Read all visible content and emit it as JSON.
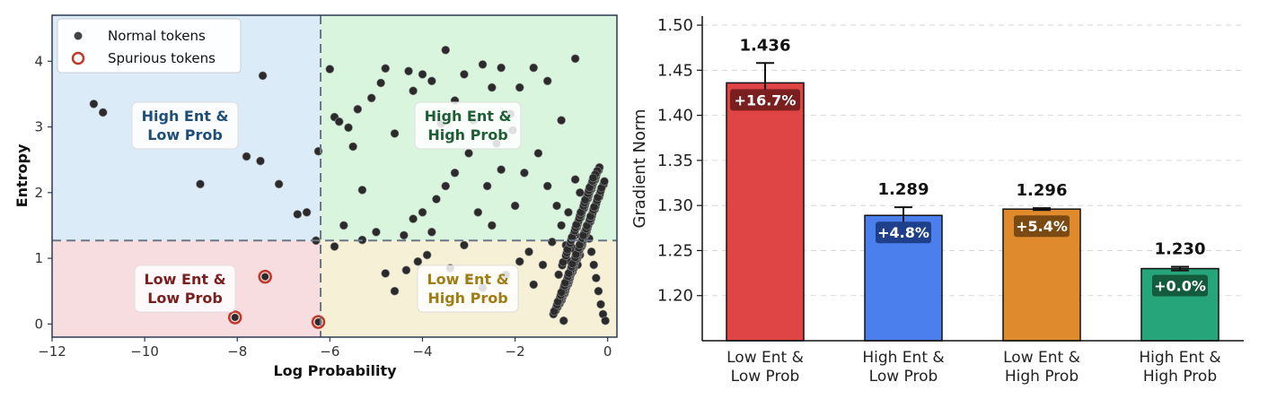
{
  "chart_data": [
    {
      "type": "scatter",
      "title": "",
      "xlabel": "Log Probability",
      "ylabel": "Entropy",
      "xlim": [
        -12,
        0.2
      ],
      "ylim": [
        -0.2,
        4.7
      ],
      "xticks": [
        -12,
        -10,
        -8,
        -6,
        -4,
        -2,
        0
      ],
      "xtick_labels": [
        "−12",
        "−10",
        "−8",
        "−6",
        "−4",
        "−2",
        "0"
      ],
      "yticks": [
        0,
        1,
        2,
        3,
        4
      ],
      "ytick_labels": [
        "0",
        "1",
        "2",
        "3",
        "4"
      ],
      "thresholds": {
        "x": -6.2,
        "y": 1.27
      },
      "legend": {
        "position": "top-left",
        "entries": [
          "Normal tokens",
          "Spurious tokens"
        ]
      },
      "regions": [
        {
          "label_line1": "High Ent &",
          "label_line2": "Low Prob",
          "color": "#1f4e79",
          "fill": "#dcebf8"
        },
        {
          "label_line1": "High Ent &",
          "label_line2": "High Prob",
          "color": "#1e5e36",
          "fill": "#daf5de"
        },
        {
          "label_line1": "Low Ent &",
          "label_line2": "Low Prob",
          "color": "#7a1f1f",
          "fill": "#f8dde0"
        },
        {
          "label_line1": "Low Ent &",
          "label_line2": "High Prob",
          "color": "#a07d12",
          "fill": "#f6f0d6"
        }
      ],
      "series": [
        {
          "name": "Normal tokens",
          "points": [
            [
              -11.1,
              3.35
            ],
            [
              -10.9,
              3.22
            ],
            [
              -8.8,
              2.13
            ],
            [
              -7.8,
              2.55
            ],
            [
              -7.5,
              2.48
            ],
            [
              -7.1,
              2.13
            ],
            [
              -6.7,
              1.67
            ],
            [
              -6.5,
              1.7
            ],
            [
              -6.3,
              1.27
            ],
            [
              -6.25,
              2.63
            ],
            [
              -7.45,
              3.78
            ],
            [
              -6.0,
              3.88
            ],
            [
              -5.9,
              3.15
            ],
            [
              -5.8,
              3.08
            ],
            [
              -5.6,
              2.99
            ],
            [
              -5.5,
              2.7
            ],
            [
              -5.4,
              3.27
            ],
            [
              -5.3,
              2.04
            ],
            [
              -5.1,
              3.44
            ],
            [
              -4.9,
              3.67
            ],
            [
              -4.8,
              3.89
            ],
            [
              -5.3,
              1.28
            ],
            [
              -5.7,
              1.5
            ],
            [
              -5.9,
              1.18
            ],
            [
              -5.0,
              1.4
            ],
            [
              -4.8,
              0.77
            ],
            [
              -4.6,
              0.5
            ],
            [
              -4.35,
              0.82
            ],
            [
              -4.1,
              0.95
            ],
            [
              -3.9,
              1.05
            ],
            [
              -4.3,
              3.85
            ],
            [
              -4.2,
              3.55
            ],
            [
              -4.0,
              3.8
            ],
            [
              -3.8,
              3.7
            ],
            [
              -3.5,
              4.17
            ],
            [
              -3.3,
              3.4
            ],
            [
              -3.1,
              3.8
            ],
            [
              -2.9,
              3.1
            ],
            [
              -2.7,
              3.95
            ],
            [
              -2.5,
              3.6
            ],
            [
              -2.3,
              3.9
            ],
            [
              -2.1,
              3.2
            ],
            [
              -1.9,
              3.6
            ],
            [
              -1.6,
              3.9
            ],
            [
              -1.3,
              3.7
            ],
            [
              -0.7,
              4.04
            ],
            [
              -1.0,
              3.1
            ],
            [
              -3.0,
              2.6
            ],
            [
              -3.3,
              2.3
            ],
            [
              -3.5,
              2.1
            ],
            [
              -3.7,
              1.9
            ],
            [
              -4.0,
              1.7
            ],
            [
              -4.2,
              1.6
            ],
            [
              -4.4,
              1.35
            ],
            [
              -3.8,
              1.4
            ],
            [
              -3.1,
              1.2
            ],
            [
              -2.6,
              2.1
            ],
            [
              -2.3,
              2.35
            ],
            [
              -2.0,
              1.8
            ],
            [
              -1.8,
              2.3
            ],
            [
              -1.5,
              2.6
            ],
            [
              -1.3,
              2.1
            ],
            [
              -1.1,
              1.8
            ],
            [
              -2.5,
              1.5
            ],
            [
              -2.8,
              1.7
            ],
            [
              -3.4,
              0.85
            ],
            [
              -3.0,
              0.7
            ],
            [
              -2.7,
              0.55
            ],
            [
              -2.2,
              0.75
            ],
            [
              -1.9,
              0.95
            ],
            [
              -1.6,
              0.6
            ],
            [
              -1.2,
              1.25
            ],
            [
              -1.0,
              1.5
            ],
            [
              -0.85,
              1.7
            ],
            [
              -0.7,
              2.2
            ],
            [
              -0.6,
              2.0
            ],
            [
              -0.5,
              1.8
            ],
            [
              -0.45,
              1.5
            ],
            [
              -0.4,
              1.3
            ],
            [
              -0.35,
              1.1
            ],
            [
              -0.3,
              0.9
            ],
            [
              -0.25,
              0.7
            ],
            [
              -0.2,
              0.5
            ],
            [
              -0.15,
              0.3
            ],
            [
              -0.1,
              0.15
            ],
            [
              -0.05,
              0.05
            ],
            [
              -0.5,
              1.4
            ],
            [
              -0.55,
              1.2
            ],
            [
              -0.6,
              1.05
            ],
            [
              -0.65,
              0.9
            ],
            [
              -0.7,
              1.35
            ],
            [
              -0.75,
              1.15
            ],
            [
              -0.8,
              0.95
            ],
            [
              -0.9,
              1.2
            ],
            [
              -1.4,
              0.9
            ],
            [
              -1.7,
              1.1
            ],
            [
              -2.4,
              2.75
            ],
            [
              -3.6,
              3.05
            ],
            [
              -4.6,
              2.9
            ],
            [
              -2.05,
              2.95
            ]
          ]
        },
        {
          "name": "Spurious tokens",
          "points": [
            [
              -7.4,
              0.72
            ],
            [
              -8.05,
              0.1
            ],
            [
              -6.25,
              0.03
            ]
          ]
        }
      ]
    },
    {
      "type": "bar",
      "title": "",
      "xlabel": "",
      "ylabel": "Gradient Norm",
      "ylim": [
        1.15,
        1.51
      ],
      "yticks": [
        1.2,
        1.25,
        1.3,
        1.35,
        1.4,
        1.45,
        1.5
      ],
      "ytick_labels": [
        "1.20",
        "1.25",
        "1.30",
        "1.35",
        "1.40",
        "1.45",
        "1.50"
      ],
      "grid": "horizontal-dashed",
      "categories": [
        {
          "line1": "Low Ent &",
          "line2": "Low Prob"
        },
        {
          "line1": "High Ent &",
          "line2": "Low Prob"
        },
        {
          "line1": "Low Ent &",
          "line2": "High Prob"
        },
        {
          "line1": "High Ent &",
          "line2": "High Prob"
        }
      ],
      "values": [
        1.436,
        1.289,
        1.296,
        1.23
      ],
      "value_labels": [
        "1.436",
        "1.289",
        "1.296",
        "1.230"
      ],
      "errors": [
        0.022,
        0.009,
        0.001,
        0.002
      ],
      "pct_labels": [
        "+16.7%",
        "+4.8%",
        "+5.4%",
        "+0.0%"
      ],
      "colors": [
        "#e04545",
        "#4a7fed",
        "#e08a2e",
        "#27a57a"
      ],
      "badge_colors": [
        "#7a1f1f",
        "#1f3f8a",
        "#7a4a12",
        "#145a3c"
      ]
    }
  ]
}
